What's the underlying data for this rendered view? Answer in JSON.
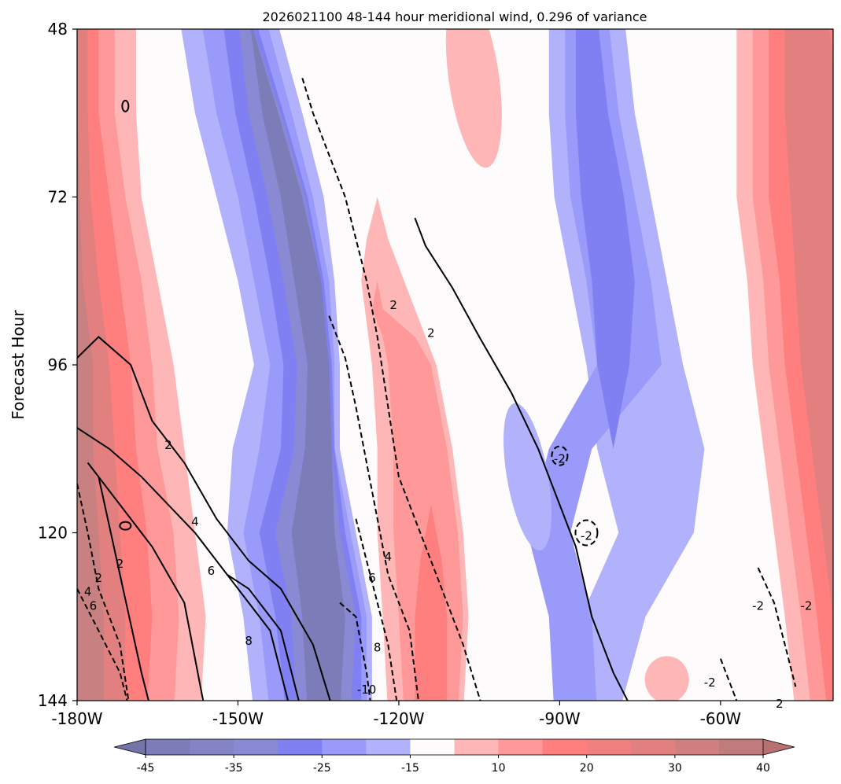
{
  "chart_data": {
    "type": "heatmap",
    "title": "2026021100 48-144 hour meridional wind, 0.296 of variance",
    "xlabel": "",
    "ylabel": "Forecast Hour",
    "x_ticks": [
      {
        "value": -180,
        "label": "-180W"
      },
      {
        "value": -150,
        "label": "-150W"
      },
      {
        "value": -120,
        "label": "-120W"
      },
      {
        "value": -90,
        "label": "-90W"
      },
      {
        "value": -60,
        "label": "-60W"
      }
    ],
    "y_ticks": [
      48,
      72,
      96,
      120,
      144
    ],
    "xlim": [
      -180,
      -39
    ],
    "ylim": [
      48,
      144
    ],
    "y_inverted": true,
    "colorbar": {
      "orientation": "horizontal",
      "extend": "both",
      "levels": [
        -45,
        -40,
        -35,
        -30,
        -25,
        -20,
        -15,
        -10,
        10,
        15,
        20,
        25,
        30,
        35,
        40,
        45
      ],
      "colors": [
        "#7c7cb8",
        "#8383c6",
        "#8a8ad4",
        "#8080f2",
        "#9a9afa",
        "#b1b1fc",
        "#fefbfd",
        "#ffb6b6",
        "#ff9999",
        "#ff7e7e",
        "#f08080",
        "#e28080",
        "#d18080",
        "#c07c7c"
      ],
      "under_color": "#7474a8",
      "over_color": "#b87070",
      "tick_labels": [
        -45,
        -35,
        -25,
        -15,
        10,
        20,
        30,
        40
      ]
    },
    "filled_regions": [
      {
        "sign": "positive",
        "level": "strong",
        "description": "band along -180W to -165W",
        "values": [
          10,
          45
        ]
      },
      {
        "sign": "negative",
        "level": "strong",
        "description": "band from -155W to -125W sloping east",
        "values": [
          -45,
          -10
        ]
      },
      {
        "sign": "positive",
        "level": "moderate",
        "description": "band from -128W to -110W",
        "values": [
          10,
          25
        ]
      },
      {
        "sign": "negative",
        "level": "moderate",
        "description": "band from -100W to -70W",
        "values": [
          -30,
          -10
        ]
      },
      {
        "sign": "positive",
        "level": "strong",
        "description": "band from -55W to -40W",
        "values": [
          10,
          40
        ]
      }
    ],
    "contour_labels": [
      "2",
      "4",
      "6",
      "8",
      "-2",
      "-4",
      "-6",
      "-8",
      "-10"
    ]
  }
}
